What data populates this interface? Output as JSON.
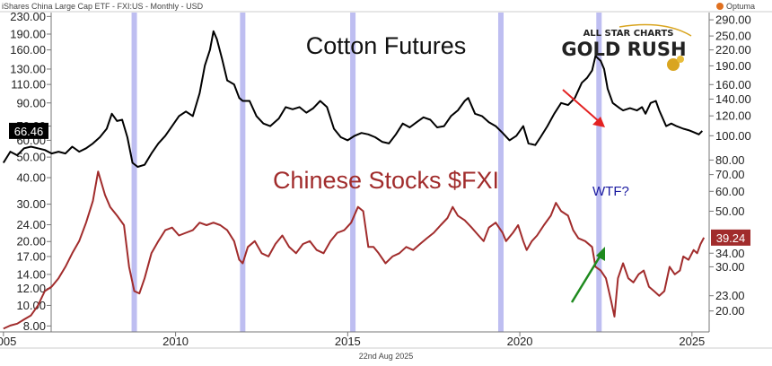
{
  "header": {
    "instrument": "iShares China Large Cap ETF - FXI:US - Monthly - USD",
    "brand": "Optuma"
  },
  "footer": {
    "date": "22nd Aug 2025"
  },
  "logo": {
    "line1": "ALL STAR CHARTS",
    "line2": "GOLD RUSH"
  },
  "colors": {
    "cotton": "#000000",
    "fxi": "#a12c2c",
    "band": "#b3b3ee",
    "up_arrow": "#1e8a1e",
    "down_arrow": "#e32222",
    "wtf": "#1a1aa0",
    "label_cotton_bg": "#000000",
    "label_fxi_bg": "#a12c2c"
  },
  "chart_data": {
    "type": "line",
    "title": "Cotton Futures",
    "subtitle": "Chinese Stocks $FXI",
    "annotation": "WTF?",
    "x_ticks": [
      "2005",
      "2010",
      "2015",
      "2020",
      "2025"
    ],
    "x_range": [
      2004.9,
      2025.5
    ],
    "log_scale": true,
    "left_axis": {
      "range": [
        7.5,
        240
      ],
      "ticks": [
        "8.00",
        "10.00",
        "12.00",
        "14.00",
        "17.00",
        "20.00",
        "24.00",
        "30.00",
        "40.00",
        "50.00",
        "60.00",
        "70.00",
        "90.00",
        "110.00",
        "130.00",
        "160.00",
        "190.00",
        "230.00"
      ]
    },
    "right_axis": {
      "range": [
        16.5,
        310
      ],
      "ticks": [
        "20.00",
        "23.00",
        "30.00",
        "34.00",
        "50.00",
        "60.00",
        "70.00",
        "80.00",
        "100.00",
        "120.00",
        "140.00",
        "160.00",
        "190.00",
        "220.00",
        "250.00",
        "290.00"
      ]
    },
    "highlight_periods": [
      2008.8,
      2011.95,
      2015.15,
      2019.45,
      2022.3
    ],
    "series": [
      {
        "name": "Cotton Futures",
        "axis": "left",
        "last_value": "66.46",
        "points": [
          [
            2005.0,
            47
          ],
          [
            2005.2,
            53
          ],
          [
            2005.4,
            51
          ],
          [
            2005.6,
            55
          ],
          [
            2005.8,
            56
          ],
          [
            2006.0,
            55
          ],
          [
            2006.2,
            54
          ],
          [
            2006.4,
            52
          ],
          [
            2006.6,
            53
          ],
          [
            2006.8,
            52
          ],
          [
            2007.0,
            56
          ],
          [
            2007.2,
            53
          ],
          [
            2007.4,
            55
          ],
          [
            2007.6,
            58
          ],
          [
            2007.8,
            62
          ],
          [
            2008.0,
            68
          ],
          [
            2008.15,
            80
          ],
          [
            2008.3,
            74
          ],
          [
            2008.45,
            75
          ],
          [
            2008.6,
            62
          ],
          [
            2008.75,
            47
          ],
          [
            2008.9,
            45
          ],
          [
            2009.1,
            46
          ],
          [
            2009.3,
            52
          ],
          [
            2009.5,
            58
          ],
          [
            2009.7,
            63
          ],
          [
            2009.9,
            70
          ],
          [
            2010.1,
            78
          ],
          [
            2010.3,
            82
          ],
          [
            2010.5,
            78
          ],
          [
            2010.7,
            100
          ],
          [
            2010.85,
            135
          ],
          [
            2011.0,
            160
          ],
          [
            2011.1,
            196
          ],
          [
            2011.2,
            180
          ],
          [
            2011.35,
            145
          ],
          [
            2011.5,
            115
          ],
          [
            2011.7,
            110
          ],
          [
            2011.85,
            95
          ],
          [
            2011.95,
            92
          ],
          [
            2012.15,
            92
          ],
          [
            2012.35,
            78
          ],
          [
            2012.55,
            72
          ],
          [
            2012.75,
            70
          ],
          [
            2013.0,
            76
          ],
          [
            2013.2,
            86
          ],
          [
            2013.4,
            84
          ],
          [
            2013.6,
            86
          ],
          [
            2013.8,
            81
          ],
          [
            2014.0,
            85
          ],
          [
            2014.2,
            92
          ],
          [
            2014.4,
            86
          ],
          [
            2014.6,
            68
          ],
          [
            2014.8,
            62
          ],
          [
            2015.0,
            60
          ],
          [
            2015.2,
            63
          ],
          [
            2015.4,
            65
          ],
          [
            2015.6,
            64
          ],
          [
            2015.8,
            62
          ],
          [
            2016.0,
            59
          ],
          [
            2016.2,
            58
          ],
          [
            2016.4,
            64
          ],
          [
            2016.6,
            72
          ],
          [
            2016.8,
            69
          ],
          [
            2017.0,
            73
          ],
          [
            2017.2,
            77
          ],
          [
            2017.4,
            75
          ],
          [
            2017.6,
            69
          ],
          [
            2017.8,
            70
          ],
          [
            2018.0,
            78
          ],
          [
            2018.2,
            83
          ],
          [
            2018.4,
            92
          ],
          [
            2018.5,
            95
          ],
          [
            2018.7,
            80
          ],
          [
            2018.9,
            78
          ],
          [
            2019.1,
            73
          ],
          [
            2019.3,
            70
          ],
          [
            2019.5,
            65
          ],
          [
            2019.7,
            60
          ],
          [
            2019.9,
            63
          ],
          [
            2020.1,
            70
          ],
          [
            2020.25,
            58
          ],
          [
            2020.45,
            57
          ],
          [
            2020.6,
            62
          ],
          [
            2020.8,
            70
          ],
          [
            2021.0,
            80
          ],
          [
            2021.2,
            90
          ],
          [
            2021.4,
            88
          ],
          [
            2021.6,
            95
          ],
          [
            2021.8,
            112
          ],
          [
            2021.95,
            118
          ],
          [
            2022.1,
            128
          ],
          [
            2022.2,
            150
          ],
          [
            2022.25,
            147
          ],
          [
            2022.35,
            142
          ],
          [
            2022.45,
            130
          ],
          [
            2022.55,
            105
          ],
          [
            2022.7,
            90
          ],
          [
            2022.9,
            85
          ],
          [
            2023.0,
            83
          ],
          [
            2023.2,
            85
          ],
          [
            2023.4,
            83
          ],
          [
            2023.55,
            86
          ],
          [
            2023.65,
            80
          ],
          [
            2023.8,
            90
          ],
          [
            2023.95,
            92
          ],
          [
            2024.05,
            83
          ],
          [
            2024.25,
            70
          ],
          [
            2024.4,
            72
          ],
          [
            2024.55,
            70
          ],
          [
            2024.75,
            68
          ],
          [
            2024.9,
            67
          ],
          [
            2025.0,
            66
          ],
          [
            2025.1,
            65
          ],
          [
            2025.2,
            64
          ],
          [
            2025.3,
            66.46
          ]
        ]
      },
      {
        "name": "Chinese Stocks $FXI",
        "axis": "right",
        "last_value": "39.24",
        "points": [
          [
            2005.0,
            17
          ],
          [
            2005.2,
            17.5
          ],
          [
            2005.4,
            17.8
          ],
          [
            2005.6,
            18.5
          ],
          [
            2005.8,
            19.2
          ],
          [
            2006.0,
            21
          ],
          [
            2006.2,
            24
          ],
          [
            2006.4,
            25
          ],
          [
            2006.6,
            27
          ],
          [
            2006.8,
            30
          ],
          [
            2007.0,
            34
          ],
          [
            2007.2,
            38
          ],
          [
            2007.4,
            45
          ],
          [
            2007.6,
            55
          ],
          [
            2007.75,
            72
          ],
          [
            2007.95,
            58
          ],
          [
            2008.1,
            52
          ],
          [
            2008.3,
            48
          ],
          [
            2008.5,
            44
          ],
          [
            2008.65,
            30
          ],
          [
            2008.8,
            24
          ],
          [
            2008.95,
            23.5
          ],
          [
            2009.1,
            27
          ],
          [
            2009.3,
            34
          ],
          [
            2009.5,
            38
          ],
          [
            2009.7,
            42
          ],
          [
            2009.9,
            43
          ],
          [
            2010.1,
            40
          ],
          [
            2010.3,
            41
          ],
          [
            2010.5,
            42
          ],
          [
            2010.7,
            45
          ],
          [
            2010.9,
            44
          ],
          [
            2011.1,
            45
          ],
          [
            2011.3,
            44
          ],
          [
            2011.5,
            42
          ],
          [
            2011.7,
            38
          ],
          [
            2011.85,
            32
          ],
          [
            2011.95,
            31
          ],
          [
            2012.1,
            36
          ],
          [
            2012.3,
            38
          ],
          [
            2012.5,
            34
          ],
          [
            2012.7,
            33
          ],
          [
            2012.9,
            37
          ],
          [
            2013.1,
            40
          ],
          [
            2013.3,
            36
          ],
          [
            2013.5,
            34
          ],
          [
            2013.7,
            37
          ],
          [
            2013.9,
            38
          ],
          [
            2014.1,
            35
          ],
          [
            2014.3,
            34
          ],
          [
            2014.5,
            38
          ],
          [
            2014.7,
            41
          ],
          [
            2014.9,
            42
          ],
          [
            2015.1,
            45
          ],
          [
            2015.3,
            52
          ],
          [
            2015.45,
            50
          ],
          [
            2015.6,
            36
          ],
          [
            2015.75,
            36
          ],
          [
            2015.9,
            34
          ],
          [
            2016.1,
            31
          ],
          [
            2016.3,
            33
          ],
          [
            2016.5,
            34
          ],
          [
            2016.7,
            36
          ],
          [
            2016.9,
            35
          ],
          [
            2017.1,
            37
          ],
          [
            2017.3,
            39
          ],
          [
            2017.5,
            41
          ],
          [
            2017.7,
            44
          ],
          [
            2017.9,
            47
          ],
          [
            2018.05,
            52
          ],
          [
            2018.2,
            48
          ],
          [
            2018.4,
            46
          ],
          [
            2018.6,
            43
          ],
          [
            2018.8,
            40
          ],
          [
            2018.95,
            38
          ],
          [
            2019.1,
            43
          ],
          [
            2019.3,
            45
          ],
          [
            2019.5,
            41
          ],
          [
            2019.6,
            38
          ],
          [
            2019.8,
            41
          ],
          [
            2019.95,
            44
          ],
          [
            2020.1,
            38
          ],
          [
            2020.2,
            35
          ],
          [
            2020.35,
            38
          ],
          [
            2020.5,
            40
          ],
          [
            2020.7,
            44
          ],
          [
            2020.9,
            48
          ],
          [
            2021.05,
            54
          ],
          [
            2021.2,
            50
          ],
          [
            2021.4,
            48
          ],
          [
            2021.55,
            42
          ],
          [
            2021.7,
            39
          ],
          [
            2021.9,
            38
          ],
          [
            2022.1,
            36
          ],
          [
            2022.2,
            30
          ],
          [
            2022.35,
            29
          ],
          [
            2022.5,
            27
          ],
          [
            2022.65,
            22
          ],
          [
            2022.75,
            19
          ],
          [
            2022.85,
            27
          ],
          [
            2023.0,
            31
          ],
          [
            2023.15,
            27
          ],
          [
            2023.3,
            26
          ],
          [
            2023.45,
            28
          ],
          [
            2023.6,
            29
          ],
          [
            2023.75,
            25
          ],
          [
            2023.9,
            24
          ],
          [
            2024.05,
            23
          ],
          [
            2024.2,
            24
          ],
          [
            2024.35,
            30
          ],
          [
            2024.5,
            28
          ],
          [
            2024.65,
            29
          ],
          [
            2024.75,
            33
          ],
          [
            2024.9,
            32
          ],
          [
            2025.05,
            35
          ],
          [
            2025.15,
            34
          ],
          [
            2025.25,
            37
          ],
          [
            2025.35,
            39.24
          ]
        ]
      }
    ]
  }
}
